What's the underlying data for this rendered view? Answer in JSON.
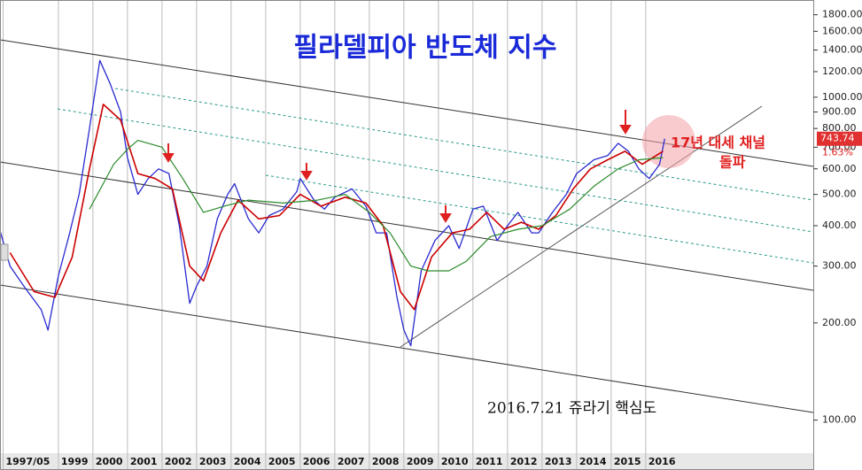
{
  "chart_data": {
    "type": "line",
    "title": "필라델피아 반도체 지수",
    "annotations": [
      "17년 대세 채널",
      "돌파",
      "2016.7.21 쥬라기 핵심도"
    ],
    "last_value": 743.74,
    "change_label": "1.63%",
    "log_scale": true,
    "grid": true,
    "xlim": [
      1997.31,
      2020.85
    ],
    "xticks": [
      {
        "value": 1997.4,
        "label": "1997/05"
      },
      1999,
      2000,
      2001,
      2002,
      2003,
      2004,
      2005,
      2006,
      2007,
      2008,
      2009,
      2010,
      2011,
      2012,
      2013,
      2014,
      2015,
      2016
    ],
    "ylim": [
      80,
      2000
    ],
    "yticks": [
      {
        "value": 1800,
        "label": "1800.00"
      },
      {
        "value": 1600,
        "label": "1600.00"
      },
      {
        "value": 1400,
        "label": "1400.00"
      },
      {
        "value": 1200,
        "label": "1200.00"
      },
      {
        "value": 1000,
        "label": "1000.00"
      },
      {
        "value": 900,
        "label": "900.00"
      },
      {
        "value": 800,
        "label": "800.00"
      },
      {
        "value": 700,
        "label": "700.00"
      },
      {
        "value": 600,
        "label": "600.00"
      },
      {
        "value": 500,
        "label": "500.00"
      },
      {
        "value": 400,
        "label": "400.00"
      },
      {
        "value": 300,
        "label": "300.00"
      },
      {
        "value": 200,
        "label": "200.00"
      },
      {
        "value": 100,
        "label": "100.00"
      }
    ],
    "series": [
      {
        "color": "#2a2ad0",
        "width": 1.3,
        "x": [
          1997.3,
          1997.6,
          1998.0,
          1998.5,
          1998.7,
          1999.0,
          1999.3,
          1999.6,
          1999.9,
          2000.2,
          2000.5,
          2000.8,
          2001.0,
          2001.3,
          2001.6,
          2001.9,
          2002.2,
          2002.5,
          2002.8,
          2003.0,
          2003.3,
          2003.6,
          2003.9,
          2004.1,
          2004.5,
          2004.8,
          2005.1,
          2005.5,
          2005.9,
          2006.0,
          2006.4,
          2006.7,
          2007.0,
          2007.5,
          2007.9,
          2008.2,
          2008.5,
          2008.8,
          2009.0,
          2009.2,
          2009.5,
          2009.9,
          2010.3,
          2010.6,
          2011.0,
          2011.3,
          2011.7,
          2012.0,
          2012.3,
          2012.7,
          2012.9,
          2013.3,
          2013.7,
          2014.0,
          2014.5,
          2014.9,
          2015.2,
          2015.5,
          2015.8,
          2016.1,
          2016.4,
          2016.55
        ],
        "values": [
          390,
          300,
          260,
          220,
          190,
          280,
          370,
          500,
          800,
          1300,
          1100,
          900,
          650,
          500,
          560,
          600,
          580,
          400,
          230,
          260,
          300,
          420,
          500,
          540,
          420,
          380,
          430,
          450,
          510,
          560,
          480,
          450,
          490,
          520,
          460,
          380,
          380,
          240,
          190,
          170,
          290,
          360,
          400,
          340,
          450,
          460,
          360,
          400,
          440,
          380,
          380,
          440,
          500,
          580,
          640,
          660,
          720,
          680,
          600,
          560,
          620,
          744
        ]
      },
      {
        "color": "#cc0000",
        "width": 1.6,
        "x": [
          1997.6,
          1998.3,
          1998.9,
          1999.4,
          1999.9,
          2000.3,
          2000.8,
          2001.3,
          2001.8,
          2002.3,
          2002.8,
          2003.2,
          2003.7,
          2004.2,
          2004.8,
          2005.4,
          2006.0,
          2006.6,
          2007.3,
          2007.9,
          2008.4,
          2008.9,
          2009.3,
          2009.8,
          2010.4,
          2010.9,
          2011.4,
          2011.9,
          2012.4,
          2012.9,
          2013.4,
          2013.9,
          2014.4,
          2014.9,
          2015.4,
          2015.9,
          2016.5
        ],
        "values": [
          330,
          250,
          240,
          320,
          600,
          950,
          850,
          580,
          560,
          520,
          300,
          270,
          380,
          480,
          420,
          430,
          500,
          460,
          490,
          470,
          400,
          250,
          220,
          320,
          380,
          390,
          440,
          390,
          410,
          390,
          430,
          520,
          600,
          640,
          680,
          620,
          680
        ]
      },
      {
        "color": "#2a8a2a",
        "width": 1.2,
        "x": [
          1999.9,
          2000.6,
          2001.0,
          2001.3,
          2002.0,
          2002.6,
          2003.2,
          2003.8,
          2004.5,
          2005.5,
          2006.5,
          2007.3,
          2008.0,
          2008.6,
          2009.2,
          2009.7,
          2010.3,
          2010.8,
          2011.5,
          2012.3,
          2013.0,
          2013.8,
          2014.5,
          2015.2,
          2015.8,
          2016.5
        ],
        "values": [
          450,
          620,
          690,
          735,
          700,
          560,
          440,
          460,
          480,
          470,
          480,
          500,
          440,
          380,
          300,
          290,
          290,
          310,
          370,
          390,
          400,
          450,
          530,
          600,
          640,
          650
        ]
      }
    ]
  }
}
